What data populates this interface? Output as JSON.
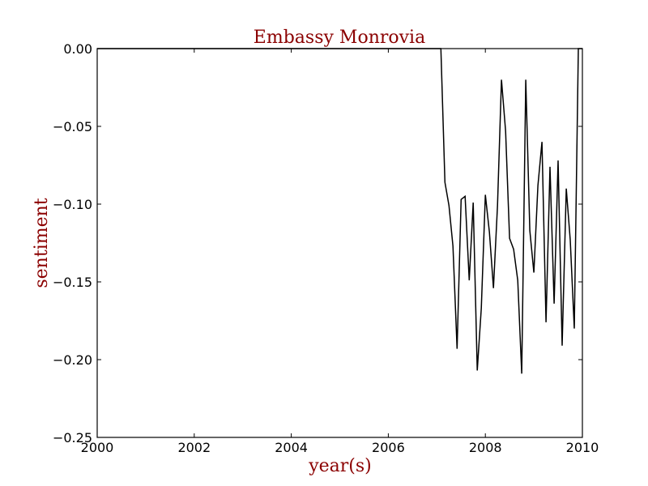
{
  "chart_data": {
    "type": "line",
    "title": "Embassy Monrovia",
    "xlabel": "year(s)",
    "ylabel": "sentiment",
    "xlim": [
      2000,
      2010
    ],
    "ylim": [
      -0.25,
      0.0
    ],
    "xticks": [
      "2000",
      "2002",
      "2004",
      "2006",
      "2008",
      "2010"
    ],
    "yticks": [
      "0.00",
      "−0.05",
      "−0.10",
      "−0.15",
      "−0.20",
      "−0.25"
    ],
    "grid": false,
    "colors": {
      "title": "#8b0000",
      "axis_label": "#8b0000",
      "line": "#000000",
      "axes": "#000000"
    },
    "series": [
      {
        "x": [
          2000.0,
          2001.0,
          2002.0,
          2003.0,
          2004.0,
          2005.0,
          2006.0,
          2007.0,
          2007.083,
          2007.167,
          2007.25,
          2007.333,
          2007.417,
          2007.5,
          2007.583,
          2007.667,
          2007.75,
          2007.833,
          2007.917,
          2008.0,
          2008.083,
          2008.167,
          2008.25,
          2008.333,
          2008.417,
          2008.5,
          2008.583,
          2008.667,
          2008.75,
          2008.833,
          2008.917,
          2009.0,
          2009.083,
          2009.167,
          2009.25,
          2009.333,
          2009.417,
          2009.5,
          2009.583,
          2009.667,
          2009.75,
          2009.833,
          2009.917,
          2010.0
        ],
        "y": [
          0.0,
          0.0,
          0.0,
          0.0,
          0.0,
          0.0,
          0.0,
          0.0,
          0.0,
          -0.086,
          -0.101,
          -0.127,
          -0.193,
          -0.097,
          -0.095,
          -0.149,
          -0.099,
          -0.207,
          -0.167,
          -0.094,
          -0.118,
          -0.154,
          -0.101,
          -0.02,
          -0.053,
          -0.122,
          -0.129,
          -0.149,
          -0.209,
          -0.02,
          -0.117,
          -0.144,
          -0.088,
          -0.06,
          -0.176,
          -0.076,
          -0.164,
          -0.072,
          -0.191,
          -0.09,
          -0.123,
          -0.18,
          0.0,
          0.0
        ]
      }
    ]
  }
}
